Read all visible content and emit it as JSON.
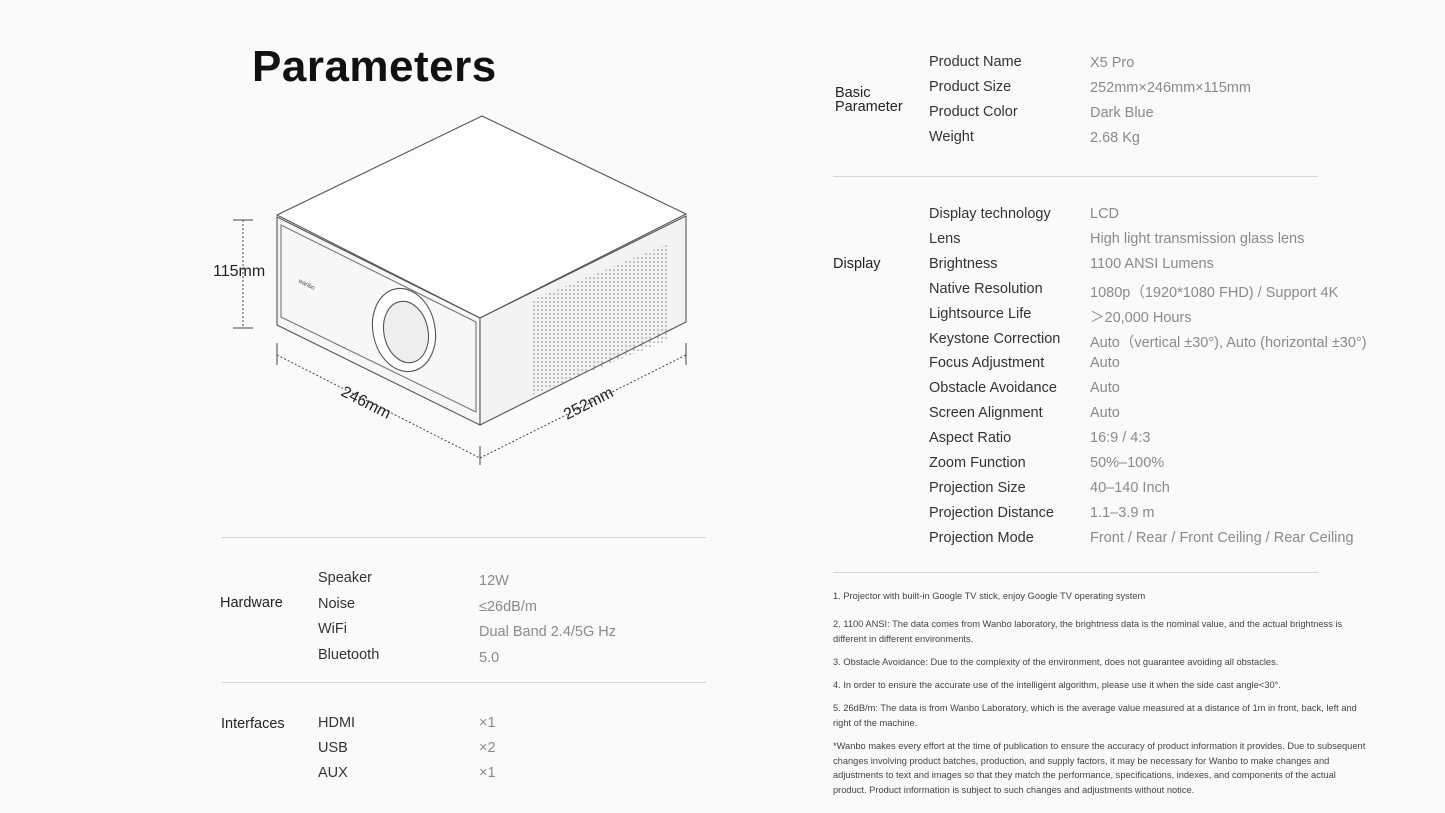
{
  "title": "Parameters",
  "drawing": {
    "height": "115mm",
    "width": "246mm",
    "depth": "252mm",
    "brand": "wanbo"
  },
  "hardware": {
    "section": "Hardware",
    "rows": [
      {
        "label": "Speaker",
        "value": "12W"
      },
      {
        "label": "Noise",
        "value": "≤26dB/m"
      },
      {
        "label": "WiFi",
        "value": "Dual Band 2.4/5G Hz"
      },
      {
        "label": "Bluetooth",
        "value": "5.0"
      }
    ]
  },
  "interfaces": {
    "section": "Interfaces",
    "rows": [
      {
        "label": "HDMI",
        "value": "×1"
      },
      {
        "label": "USB",
        "value": "×2"
      },
      {
        "label": "AUX",
        "value": "×1"
      }
    ]
  },
  "basic": {
    "section_line1": "Basic",
    "section_line2": "Parameter",
    "rows": [
      {
        "label": "Product Name",
        "value": "X5 Pro"
      },
      {
        "label": "Product Size",
        "value": "252mm×246mm×115mm"
      },
      {
        "label": "Product Color",
        "value": "Dark Blue"
      },
      {
        "label": "Weight",
        "value": "2.68 Kg"
      }
    ]
  },
  "display": {
    "section": "Display",
    "rows": [
      {
        "label": "Display technology",
        "value": "LCD"
      },
      {
        "label": "Lens",
        "value": "High light transmission glass lens"
      },
      {
        "label": "Brightness",
        "value": "1100 ANSI Lumens"
      },
      {
        "label": "Native Resolution",
        "value": "1080p（1920*1080 FHD) / Support 4K"
      },
      {
        "label": "Lightsource Life",
        "value": "＞20,000 Hours"
      },
      {
        "label": "Keystone Correction",
        "value": "Auto（vertical ±30°), Auto (horizontal ±30°)"
      },
      {
        "label": "Focus Adjustment",
        "value": "Auto"
      },
      {
        "label": "Obstacle Avoidance",
        "value": "Auto"
      },
      {
        "label": "Screen Alignment",
        "value": "Auto"
      },
      {
        "label": "Aspect Ratio",
        "value": "16:9 / 4:3"
      },
      {
        "label": "Zoom Function",
        "value": "50%–100%"
      },
      {
        "label": "Projection Size",
        "value": "40–140 Inch"
      },
      {
        "label": "Projection Distance",
        "value": "1.1–3.9 m"
      },
      {
        "label": "Projection Mode",
        "value": "Front / Rear / Front Ceiling / Rear Ceiling"
      }
    ]
  },
  "notes": [
    "1. Projector with built-in Google TV stick, enjoy Google TV operating system",
    "2. 1100 ANSI: The data comes from Wanbo laboratory, the brightness data is the nominal value, and the actual brightness is different in different environments.",
    "3. Obstacle Avoidance: Due to the complexity of the environment, does not guarantee avoiding all obstacles.",
    "4. In order to ensure the accurate use of the intelligent algorithm, please use it when the side cast angle<30°.",
    "5. 26dB/m:   The data is from Wanbo Laboratory, which is the average value measured at a distance of 1m in front, back, left and right of the machine.",
    "*Wanbo makes every effort at the time of publication to ensure the accuracy of product information it provides. Due to subsequent changes involving product batches, production, and supply factors, it may be necessary for Wanbo to make changes and adjustments to text and images so that they match the performance, specifications, indexes, and components of the actual product. Product information is subject to such changes and adjustments without notice."
  ]
}
